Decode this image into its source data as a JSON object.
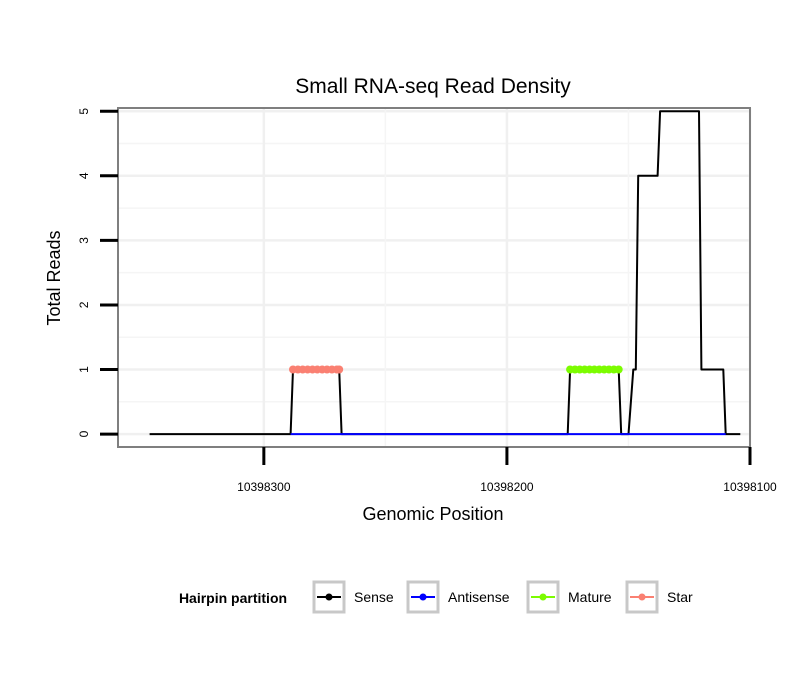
{
  "chart_data": {
    "type": "line",
    "title": "Small RNA-seq Read Density",
    "xlabel": "Genomic Position",
    "ylabel": "Total Reads",
    "xlim": [
      10398360,
      10398100
    ],
    "ylim": [
      -0.2,
      5.05
    ],
    "x_reversed": true,
    "x_ticks": [
      10398300,
      10398200,
      10398100
    ],
    "x_tick_labels": [
      "10398300",
      "10398200",
      "10398100"
    ],
    "y_ticks": [
      0,
      1,
      2,
      3,
      4,
      5
    ],
    "y_tick_labels": [
      "0",
      "1",
      "2",
      "3",
      "4",
      "5"
    ],
    "grid": true,
    "legend": {
      "title": "Hairpin partition",
      "position": "bottom",
      "entries": [
        "Sense",
        "Antisense",
        "Mature",
        "Star"
      ]
    },
    "series": [
      {
        "name": "Sense",
        "color": "#000000",
        "points": [
          [
            10398347,
            0
          ],
          [
            10398289,
            0
          ],
          [
            10398288,
            1
          ],
          [
            10398269,
            1
          ],
          [
            10398268,
            0
          ],
          [
            10398175,
            0
          ],
          [
            10398174,
            1
          ],
          [
            10398154,
            1
          ],
          [
            10398153,
            0
          ],
          [
            10398150,
            0
          ],
          [
            10398148,
            1
          ],
          [
            10398147,
            1
          ],
          [
            10398146,
            4
          ],
          [
            10398138,
            4
          ],
          [
            10398137,
            5
          ],
          [
            10398121,
            5
          ],
          [
            10398120,
            1
          ],
          [
            10398111,
            1
          ],
          [
            10398110,
            0
          ],
          [
            10398104,
            0
          ]
        ]
      },
      {
        "name": "Antisense",
        "color": "#0000ff",
        "points": [
          [
            10398289,
            0
          ],
          [
            10398268,
            0
          ],
          [
            10398175,
            0
          ],
          [
            10398110,
            0
          ]
        ]
      },
      {
        "name": "Mature",
        "color": "#7cfc00",
        "points": [
          [
            10398174,
            1
          ],
          [
            10398172,
            1
          ],
          [
            10398170,
            1
          ],
          [
            10398168,
            1
          ],
          [
            10398166,
            1
          ],
          [
            10398164,
            1
          ],
          [
            10398162,
            1
          ],
          [
            10398160,
            1
          ],
          [
            10398158,
            1
          ],
          [
            10398156,
            1
          ],
          [
            10398154,
            1
          ]
        ]
      },
      {
        "name": "Star",
        "color": "#fa8072",
        "points": [
          [
            10398288,
            1
          ],
          [
            10398286,
            1
          ],
          [
            10398284,
            1
          ],
          [
            10398282,
            1
          ],
          [
            10398280,
            1
          ],
          [
            10398278,
            1
          ],
          [
            10398276,
            1
          ],
          [
            10398274,
            1
          ],
          [
            10398272,
            1
          ],
          [
            10398270,
            1
          ],
          [
            10398269,
            1
          ]
        ]
      }
    ]
  }
}
